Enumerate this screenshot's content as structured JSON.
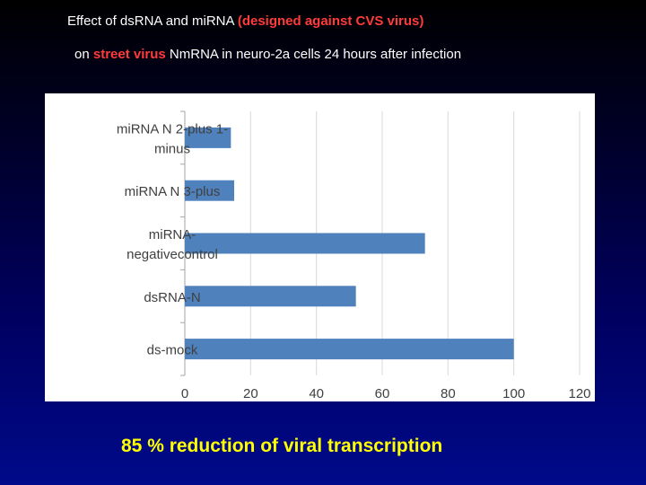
{
  "heading": {
    "line1_a": "Effect of ds",
    "line1_b": "RNA and mi",
    "line1_c": "RNA ",
    "line1_red": "(designed against CVS virus)",
    "line2_a": "on ",
    "line2_red": "street virus",
    "line2_b": " Nm",
    "line2_c": "RNA in neuro-2a cells 24 hours after infection"
  },
  "chart_data": {
    "type": "bar",
    "orientation": "horizontal",
    "categories": [
      "miRNA N 2-plus 1-minus",
      "miRNA N 3-plus",
      "miRNA-negativecontrol",
      "dsRNA-N",
      "ds-mock"
    ],
    "category_lines": [
      [
        "miRNA N 2-plus 1-",
        "minus"
      ],
      [
        "miRNA N 3-plus"
      ],
      [
        "miRNA-",
        "negativecontrol"
      ],
      [
        "dsRNA-N"
      ],
      [
        "ds-mock"
      ]
    ],
    "values": [
      14,
      15,
      73,
      52,
      100
    ],
    "xlim": [
      0,
      120
    ],
    "xticks": [
      0,
      20,
      40,
      60,
      80,
      100,
      120
    ],
    "grid": true,
    "bar_color": "#4f81bd",
    "title": "",
    "xlabel": "",
    "ylabel": ""
  },
  "caption": "85 % reduction of viral transcription",
  "colors": {
    "accent_red": "#ff3b3b",
    "caption_yellow": "#ffff00"
  }
}
